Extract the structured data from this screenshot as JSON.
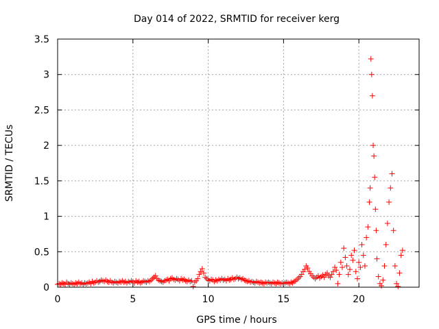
{
  "chart_data": {
    "type": "scatter",
    "title": "Day 014 of 2022, SRMTID for receiver kerg",
    "xlabel": "GPS time / hours",
    "ylabel": "SRMTID / TECUs",
    "xlim": [
      0,
      24
    ],
    "ylim": [
      0,
      3.5
    ],
    "grid": true,
    "marker": "+",
    "color": "#ff0000",
    "x_ticks": [
      0,
      5,
      10,
      15,
      20
    ],
    "x_tick_labels": [
      "0",
      "5",
      "10",
      "15",
      "20"
    ],
    "y_ticks": [
      0,
      0.5,
      1,
      1.5,
      2,
      2.5,
      3,
      3.5
    ],
    "y_tick_labels": [
      "0",
      "0.5",
      "1",
      "1.5",
      "2",
      "2.5",
      "3",
      "3.5"
    ],
    "series": [
      {
        "name": "SRMTID",
        "points": [
          [
            0.0,
            0.04
          ],
          [
            0.1,
            0.05
          ],
          [
            0.2,
            0.04
          ],
          [
            0.3,
            0.06
          ],
          [
            0.4,
            0.05
          ],
          [
            0.5,
            0.04
          ],
          [
            0.6,
            0.07
          ],
          [
            0.7,
            0.05
          ],
          [
            0.8,
            0.04
          ],
          [
            0.9,
            0.06
          ],
          [
            1.0,
            0.05
          ],
          [
            1.1,
            0.04
          ],
          [
            1.2,
            0.06
          ],
          [
            1.3,
            0.05
          ],
          [
            1.4,
            0.07
          ],
          [
            1.5,
            0.05
          ],
          [
            1.6,
            0.06
          ],
          [
            1.7,
            0.04
          ],
          [
            1.8,
            0.06
          ],
          [
            1.9,
            0.05
          ],
          [
            2.0,
            0.06
          ],
          [
            2.1,
            0.07
          ],
          [
            2.2,
            0.05
          ],
          [
            2.3,
            0.08
          ],
          [
            2.4,
            0.06
          ],
          [
            2.5,
            0.07
          ],
          [
            2.6,
            0.09
          ],
          [
            2.7,
            0.07
          ],
          [
            2.8,
            0.08
          ],
          [
            2.9,
            0.1
          ],
          [
            3.0,
            0.09
          ],
          [
            3.1,
            0.08
          ],
          [
            3.2,
            0.1
          ],
          [
            3.3,
            0.08
          ],
          [
            3.4,
            0.07
          ],
          [
            3.5,
            0.09
          ],
          [
            3.6,
            0.07
          ],
          [
            3.7,
            0.06
          ],
          [
            3.8,
            0.08
          ],
          [
            3.9,
            0.07
          ],
          [
            4.0,
            0.06
          ],
          [
            4.1,
            0.08
          ],
          [
            4.2,
            0.07
          ],
          [
            4.3,
            0.09
          ],
          [
            4.4,
            0.07
          ],
          [
            4.5,
            0.08
          ],
          [
            4.6,
            0.06
          ],
          [
            4.7,
            0.08
          ],
          [
            4.8,
            0.07
          ],
          [
            4.9,
            0.09
          ],
          [
            5.0,
            0.08
          ],
          [
            5.1,
            0.06
          ],
          [
            5.2,
            0.09
          ],
          [
            5.3,
            0.07
          ],
          [
            5.4,
            0.08
          ],
          [
            5.5,
            0.06
          ],
          [
            5.6,
            0.07
          ],
          [
            5.7,
            0.09
          ],
          [
            5.8,
            0.08
          ],
          [
            5.9,
            0.07
          ],
          [
            6.0,
            0.09
          ],
          [
            6.1,
            0.08
          ],
          [
            6.2,
            0.1
          ],
          [
            6.3,
            0.12
          ],
          [
            6.4,
            0.14
          ],
          [
            6.5,
            0.16
          ],
          [
            6.6,
            0.12
          ],
          [
            6.7,
            0.1
          ],
          [
            6.8,
            0.09
          ],
          [
            6.9,
            0.08
          ],
          [
            7.0,
            0.07
          ],
          [
            7.1,
            0.09
          ],
          [
            7.2,
            0.1
          ],
          [
            7.3,
            0.11
          ],
          [
            7.4,
            0.09
          ],
          [
            7.5,
            0.12
          ],
          [
            7.6,
            0.13
          ],
          [
            7.7,
            0.11
          ],
          [
            7.8,
            0.1
          ],
          [
            7.9,
            0.12
          ],
          [
            8.0,
            0.11
          ],
          [
            8.1,
            0.09
          ],
          [
            8.2,
            0.12
          ],
          [
            8.3,
            0.1
          ],
          [
            8.4,
            0.11
          ],
          [
            8.5,
            0.09
          ],
          [
            8.6,
            0.08
          ],
          [
            8.7,
            0.1
          ],
          [
            8.8,
            0.08
          ],
          [
            8.9,
            0.09
          ],
          [
            9.0,
            0.01
          ],
          [
            9.1,
            0.07
          ],
          [
            9.2,
            0.09
          ],
          [
            9.3,
            0.12
          ],
          [
            9.4,
            0.18
          ],
          [
            9.5,
            0.22
          ],
          [
            9.6,
            0.26
          ],
          [
            9.7,
            0.2
          ],
          [
            9.8,
            0.14
          ],
          [
            9.9,
            0.12
          ],
          [
            10.0,
            0.1
          ],
          [
            10.1,
            0.09
          ],
          [
            10.2,
            0.11
          ],
          [
            10.3,
            0.1
          ],
          [
            10.4,
            0.08
          ],
          [
            10.5,
            0.1
          ],
          [
            10.6,
            0.09
          ],
          [
            10.7,
            0.11
          ],
          [
            10.8,
            0.1
          ],
          [
            10.9,
            0.12
          ],
          [
            11.0,
            0.1
          ],
          [
            11.1,
            0.11
          ],
          [
            11.2,
            0.09
          ],
          [
            11.3,
            0.12
          ],
          [
            11.4,
            0.1
          ],
          [
            11.5,
            0.11
          ],
          [
            11.6,
            0.13
          ],
          [
            11.7,
            0.11
          ],
          [
            11.8,
            0.12
          ],
          [
            11.9,
            0.14
          ],
          [
            12.0,
            0.12
          ],
          [
            12.1,
            0.13
          ],
          [
            12.2,
            0.11
          ],
          [
            12.3,
            0.12
          ],
          [
            12.4,
            0.1
          ],
          [
            12.5,
            0.09
          ],
          [
            12.6,
            0.08
          ],
          [
            12.7,
            0.09
          ],
          [
            12.8,
            0.07
          ],
          [
            12.9,
            0.08
          ],
          [
            13.0,
            0.07
          ],
          [
            13.1,
            0.06
          ],
          [
            13.2,
            0.08
          ],
          [
            13.3,
            0.07
          ],
          [
            13.4,
            0.06
          ],
          [
            13.5,
            0.07
          ],
          [
            13.6,
            0.06
          ],
          [
            13.7,
            0.05
          ],
          [
            13.8,
            0.07
          ],
          [
            13.9,
            0.06
          ],
          [
            14.0,
            0.07
          ],
          [
            14.1,
            0.06
          ],
          [
            14.2,
            0.05
          ],
          [
            14.3,
            0.07
          ],
          [
            14.4,
            0.06
          ],
          [
            14.5,
            0.05
          ],
          [
            14.6,
            0.07
          ],
          [
            14.7,
            0.06
          ],
          [
            14.8,
            0.05
          ],
          [
            14.9,
            0.06
          ],
          [
            15.0,
            0.05
          ],
          [
            15.1,
            0.06
          ],
          [
            15.2,
            0.07
          ],
          [
            15.3,
            0.06
          ],
          [
            15.4,
            0.05
          ],
          [
            15.5,
            0.07
          ],
          [
            15.6,
            0.06
          ],
          [
            15.7,
            0.08
          ],
          [
            15.8,
            0.09
          ],
          [
            15.9,
            0.11
          ],
          [
            16.0,
            0.13
          ],
          [
            16.1,
            0.15
          ],
          [
            16.2,
            0.18
          ],
          [
            16.3,
            0.22
          ],
          [
            16.4,
            0.25
          ],
          [
            16.5,
            0.3
          ],
          [
            16.6,
            0.27
          ],
          [
            16.7,
            0.22
          ],
          [
            16.8,
            0.19
          ],
          [
            16.9,
            0.16
          ],
          [
            17.0,
            0.14
          ],
          [
            17.1,
            0.12
          ],
          [
            17.2,
            0.14
          ],
          [
            17.3,
            0.16
          ],
          [
            17.4,
            0.13
          ],
          [
            17.5,
            0.15
          ],
          [
            17.6,
            0.17
          ],
          [
            17.7,
            0.14
          ],
          [
            17.8,
            0.18
          ],
          [
            17.9,
            0.2
          ],
          [
            18.0,
            0.16
          ],
          [
            18.1,
            0.14
          ],
          [
            18.2,
            0.18
          ],
          [
            18.3,
            0.22
          ],
          [
            18.4,
            0.28
          ],
          [
            18.5,
            0.24
          ],
          [
            18.6,
            0.05
          ],
          [
            18.7,
            0.18
          ],
          [
            18.8,
            0.35
          ],
          [
            18.9,
            0.28
          ],
          [
            19.0,
            0.55
          ],
          [
            19.1,
            0.42
          ],
          [
            19.2,
            0.3
          ],
          [
            19.3,
            0.18
          ],
          [
            19.4,
            0.25
          ],
          [
            19.5,
            0.45
          ],
          [
            19.6,
            0.38
          ],
          [
            19.7,
            0.52
          ],
          [
            19.8,
            0.22
          ],
          [
            19.9,
            0.12
          ],
          [
            20.0,
            0.35
          ],
          [
            20.1,
            0.28
          ],
          [
            20.2,
            0.6
          ],
          [
            20.3,
            0.45
          ],
          [
            20.4,
            0.3
          ],
          [
            20.5,
            0.7
          ],
          [
            20.6,
            0.85
          ],
          [
            20.7,
            1.2
          ],
          [
            20.75,
            1.4
          ],
          [
            20.8,
            3.22
          ],
          [
            20.85,
            3.0
          ],
          [
            20.9,
            2.7
          ],
          [
            20.95,
            2.0
          ],
          [
            21.0,
            1.85
          ],
          [
            21.05,
            1.55
          ],
          [
            21.1,
            1.1
          ],
          [
            21.15,
            0.8
          ],
          [
            21.2,
            0.4
          ],
          [
            21.3,
            0.15
          ],
          [
            21.4,
            0.05
          ],
          [
            21.5,
            0.02
          ],
          [
            21.6,
            0.1
          ],
          [
            21.7,
            0.3
          ],
          [
            21.8,
            0.6
          ],
          [
            21.9,
            0.9
          ],
          [
            22.0,
            1.2
          ],
          [
            22.1,
            1.4
          ],
          [
            22.2,
            1.6
          ],
          [
            22.3,
            0.8
          ],
          [
            22.4,
            0.3
          ],
          [
            22.5,
            0.05
          ],
          [
            22.6,
            0.01
          ],
          [
            22.7,
            0.2
          ],
          [
            22.8,
            0.45
          ],
          [
            22.9,
            0.52
          ]
        ]
      }
    ]
  }
}
